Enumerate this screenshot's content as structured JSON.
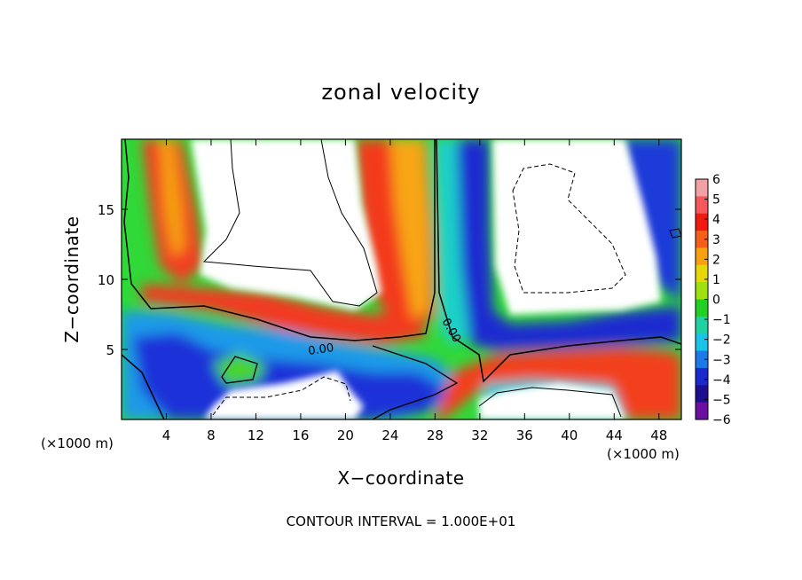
{
  "chart_data": {
    "type": "heatmap",
    "title": "zonal velocity",
    "xlabel": "X−coordinate",
    "ylabel": "Z−coordinate",
    "x_unit_label": "(×1000 m)",
    "z_unit_label": "(×1000 m)",
    "xlim": [
      0,
      50
    ],
    "ylim": [
      0,
      20
    ],
    "x_ticks": [
      4,
      8,
      12,
      16,
      20,
      24,
      28,
      32,
      36,
      40,
      44,
      48
    ],
    "y_ticks": [
      5,
      10,
      15
    ],
    "colorbar": {
      "min": -6,
      "max": 6,
      "ticks": [
        "6",
        "5",
        "4",
        "3",
        "2",
        "1",
        "0",
        "−1",
        "−2",
        "−3",
        "−4",
        "−5",
        "−6"
      ],
      "colors": [
        "#f2a0a4",
        "#f4585a",
        "#f01a10",
        "#f46018",
        "#f7a010",
        "#e6d808",
        "#9ee010",
        "#22d022",
        "#20d2a2",
        "#1ac4e8",
        "#1a7ae8",
        "#1c28d0",
        "#1c1090",
        "#6a10a0"
      ]
    },
    "contour_labels": [
      "0.00",
      "0.00"
    ],
    "footnote": "CONTOUR INTERVAL = 1.000E+01",
    "grid": false
  }
}
